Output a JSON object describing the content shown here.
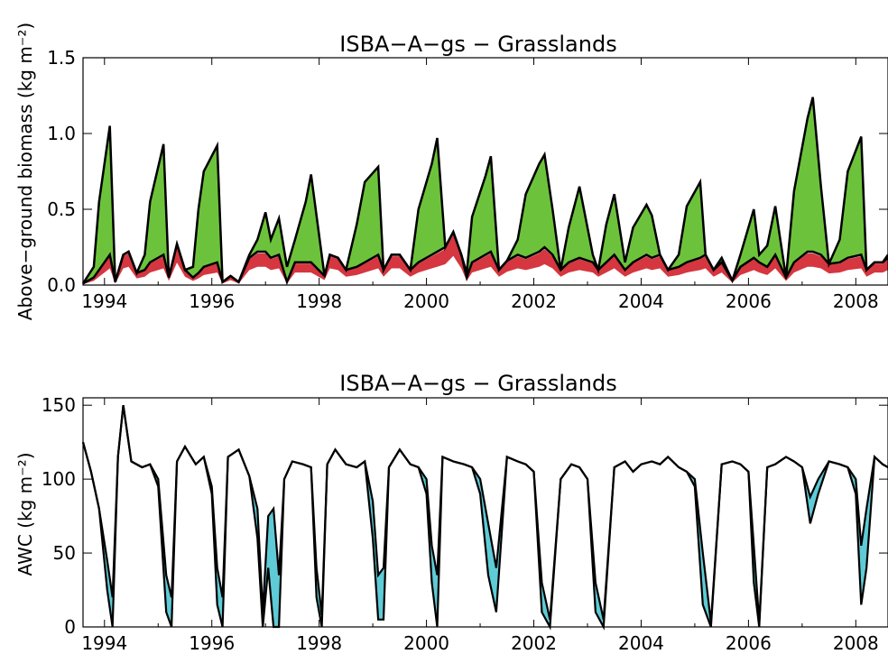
{
  "chart_data": [
    {
      "type": "area",
      "title": "ISBA−A−gs − Grasslands",
      "ylabel": "Above−ground biomass (kg m⁻²)",
      "xlabel": "",
      "x_ticks": [
        "1994",
        "1996",
        "1998",
        "2000",
        "2002",
        "2004",
        "2006",
        "2008"
      ],
      "y_ticks": [
        "0.0",
        "0.5",
        "1.0",
        "1.5"
      ],
      "xlim": [
        1993.6,
        2008.6
      ],
      "ylim": [
        0,
        1.5
      ],
      "grid": false,
      "colors": {
        "fill_upper": "#6cc33b",
        "fill_lower": "#d0202a",
        "line": "#000000"
      },
      "series": [
        {
          "x": [
            1993.6,
            1993.8,
            1993.9,
            1994.1,
            1994.2,
            1994.35,
            1994.45,
            1994.6,
            1994.75,
            1994.85,
            1995.1,
            1995.2,
            1995.35,
            1995.5,
            1995.65,
            1995.75,
            1995.85,
            1996.1,
            1996.2,
            1996.35,
            1996.5,
            1996.7,
            1996.85,
            1997.0,
            1997.1,
            1997.25,
            1997.4,
            1997.55,
            1997.75,
            1997.85,
            1998.1,
            1998.2,
            1998.35,
            1998.5,
            1998.7,
            1998.85,
            1999.1,
            1999.2,
            1999.35,
            1999.5,
            1999.7,
            1999.85,
            2000.1,
            2000.2,
            2000.35,
            2000.5,
            2000.65,
            2000.75,
            2000.85,
            2001.1,
            2001.2,
            2001.35,
            2001.5,
            2001.7,
            2001.85,
            2002.1,
            2002.2,
            2002.35,
            2002.5,
            2002.65,
            2002.85,
            2003.1,
            2003.2,
            2003.35,
            2003.5,
            2003.7,
            2003.85,
            2004.1,
            2004.2,
            2004.35,
            2004.5,
            2004.7,
            2004.85,
            2005.1,
            2005.2,
            2005.35,
            2005.5,
            2005.7,
            2005.85,
            2006.1,
            2006.2,
            2006.35,
            2006.5,
            2006.7,
            2006.85,
            2007.1,
            2007.2,
            2007.35,
            2007.5,
            2007.7,
            2007.85,
            2008.1,
            2008.2,
            2008.35,
            2008.5,
            2008.6
          ],
          "upper": [
            0.01,
            0.12,
            0.55,
            1.05,
            0.02,
            0.2,
            0.22,
            0.08,
            0.2,
            0.55,
            0.93,
            0.05,
            0.27,
            0.1,
            0.12,
            0.5,
            0.75,
            0.92,
            0.02,
            0.06,
            0.02,
            0.2,
            0.3,
            0.48,
            0.3,
            0.44,
            0.12,
            0.3,
            0.55,
            0.73,
            0.06,
            0.2,
            0.18,
            0.1,
            0.4,
            0.68,
            0.78,
            0.1,
            0.2,
            0.2,
            0.1,
            0.5,
            0.8,
            0.97,
            0.25,
            0.35,
            0.2,
            0.08,
            0.45,
            0.72,
            0.85,
            0.1,
            0.16,
            0.3,
            0.6,
            0.8,
            0.86,
            0.5,
            0.1,
            0.38,
            0.65,
            0.2,
            0.1,
            0.4,
            0.6,
            0.15,
            0.38,
            0.53,
            0.46,
            0.2,
            0.1,
            0.2,
            0.52,
            0.68,
            0.2,
            0.1,
            0.18,
            0.03,
            0.2,
            0.5,
            0.2,
            0.26,
            0.52,
            0.05,
            0.62,
            1.1,
            1.24,
            0.65,
            0.14,
            0.3,
            0.75,
            0.98,
            0.1,
            0.15,
            0.15,
            0.2
          ],
          "lower": [
            0.01,
            0.05,
            0.1,
            0.2,
            0.02,
            0.2,
            0.22,
            0.08,
            0.1,
            0.15,
            0.2,
            0.05,
            0.27,
            0.1,
            0.05,
            0.08,
            0.12,
            0.15,
            0.02,
            0.06,
            0.02,
            0.18,
            0.22,
            0.22,
            0.18,
            0.2,
            0.02,
            0.15,
            0.15,
            0.15,
            0.06,
            0.2,
            0.18,
            0.1,
            0.12,
            0.15,
            0.2,
            0.1,
            0.2,
            0.2,
            0.1,
            0.15,
            0.2,
            0.22,
            0.25,
            0.35,
            0.2,
            0.05,
            0.15,
            0.2,
            0.22,
            0.1,
            0.16,
            0.2,
            0.18,
            0.22,
            0.25,
            0.2,
            0.1,
            0.15,
            0.18,
            0.15,
            0.1,
            0.15,
            0.2,
            0.1,
            0.15,
            0.2,
            0.18,
            0.2,
            0.1,
            0.12,
            0.15,
            0.18,
            0.2,
            0.1,
            0.15,
            0.03,
            0.12,
            0.18,
            0.15,
            0.12,
            0.2,
            0.05,
            0.15,
            0.22,
            0.22,
            0.2,
            0.14,
            0.15,
            0.18,
            0.2,
            0.1,
            0.15,
            0.15,
            0.18
          ]
        }
      ]
    },
    {
      "type": "area",
      "title": "ISBA−A−gs − Grasslands",
      "ylabel": "AWC (kg m⁻²)",
      "xlabel": "",
      "x_ticks": [
        "1994",
        "1996",
        "1998",
        "2000",
        "2002",
        "2004",
        "2006",
        "2008"
      ],
      "y_ticks": [
        "0",
        "50",
        "100",
        "150"
      ],
      "xlim": [
        1993.6,
        2008.6
      ],
      "ylim": [
        0,
        155
      ],
      "grid": false,
      "colors": {
        "fill": "#5ecbd6",
        "line": "#000000"
      },
      "series": [
        {
          "x": [
            1993.6,
            1993.75,
            1993.9,
            1994.05,
            1994.15,
            1994.25,
            1994.35,
            1994.5,
            1994.7,
            1994.85,
            1995.0,
            1995.15,
            1995.25,
            1995.35,
            1995.5,
            1995.7,
            1995.85,
            1996.0,
            1996.1,
            1996.2,
            1996.3,
            1996.5,
            1996.7,
            1996.85,
            1996.95,
            1997.05,
            1997.15,
            1997.25,
            1997.35,
            1997.5,
            1997.7,
            1997.85,
            1997.95,
            1998.05,
            1998.15,
            1998.3,
            1998.5,
            1998.7,
            1998.85,
            1999.0,
            1999.1,
            1999.2,
            1999.3,
            1999.5,
            1999.7,
            1999.85,
            2000.0,
            2000.1,
            2000.2,
            2000.3,
            2000.5,
            2000.7,
            2000.85,
            2001.0,
            2001.15,
            2001.3,
            2001.5,
            2001.7,
            2001.85,
            2002.0,
            2002.15,
            2002.3,
            2002.5,
            2002.7,
            2002.85,
            2003.0,
            2003.15,
            2003.3,
            2003.5,
            2003.7,
            2003.85,
            2004.0,
            2004.2,
            2004.35,
            2004.5,
            2004.7,
            2004.85,
            2005.0,
            2005.15,
            2005.3,
            2005.5,
            2005.7,
            2005.85,
            2006.0,
            2006.1,
            2006.2,
            2006.35,
            2006.5,
            2006.7,
            2006.85,
            2007.0,
            2007.15,
            2007.3,
            2007.5,
            2007.7,
            2007.85,
            2008.0,
            2008.1,
            2008.2,
            2008.35,
            2008.5,
            2008.6
          ],
          "upper": [
            125,
            105,
            80,
            45,
            20,
            115,
            150,
            112,
            108,
            110,
            100,
            35,
            20,
            112,
            122,
            110,
            115,
            95,
            40,
            20,
            115,
            120,
            102,
            80,
            10,
            75,
            80,
            35,
            100,
            112,
            110,
            108,
            40,
            8,
            110,
            120,
            110,
            108,
            112,
            85,
            35,
            40,
            108,
            120,
            110,
            108,
            100,
            55,
            35,
            115,
            112,
            110,
            108,
            100,
            70,
            40,
            115,
            112,
            110,
            105,
            30,
            5,
            100,
            110,
            108,
            100,
            30,
            5,
            108,
            112,
            105,
            110,
            112,
            110,
            115,
            108,
            105,
            100,
            50,
            3,
            110,
            112,
            110,
            105,
            55,
            3,
            108,
            110,
            115,
            112,
            108,
            88,
            100,
            112,
            110,
            108,
            100,
            55,
            80,
            115,
            110,
            108
          ],
          "lower": [
            125,
            105,
            80,
            25,
            0,
            115,
            150,
            112,
            108,
            110,
            95,
            10,
            0,
            112,
            122,
            110,
            115,
            90,
            15,
            0,
            115,
            120,
            102,
            60,
            0,
            40,
            0,
            0,
            100,
            112,
            110,
            108,
            20,
            0,
            110,
            120,
            110,
            108,
            112,
            60,
            5,
            5,
            108,
            120,
            110,
            108,
            90,
            30,
            0,
            115,
            112,
            110,
            108,
            90,
            35,
            10,
            115,
            112,
            110,
            105,
            10,
            0,
            100,
            110,
            108,
            100,
            10,
            0,
            108,
            112,
            105,
            110,
            112,
            110,
            115,
            108,
            105,
            95,
            15,
            0,
            110,
            112,
            110,
            105,
            30,
            0,
            108,
            110,
            115,
            112,
            108,
            70,
            90,
            112,
            110,
            108,
            90,
            15,
            40,
            115,
            110,
            108
          ]
        }
      ]
    }
  ]
}
